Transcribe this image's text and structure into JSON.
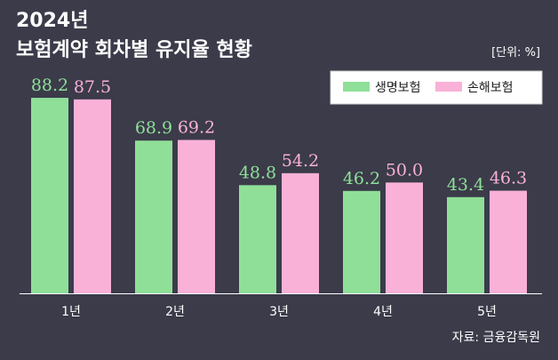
{
  "header": {
    "year_title": "2024년",
    "main_title": "보험계약 회차별 유지율 현황",
    "unit": "[단위: %]"
  },
  "source": "자료: 금융감독원",
  "colors": {
    "background": "#3b3b4a",
    "life": "#8fdf98",
    "nonlife": "#f9b1d8",
    "text_light": "#ffffff",
    "text_dark": "#1e1e1e"
  },
  "chart_data": {
    "type": "bar",
    "categories": [
      "1년",
      "2년",
      "3년",
      "4년",
      "5년"
    ],
    "series": [
      {
        "name": "생명보험",
        "values": [
          88.2,
          68.9,
          48.8,
          46.2,
          43.4
        ]
      },
      {
        "name": "손해보험",
        "values": [
          87.5,
          69.2,
          54.2,
          50.0,
          46.3
        ]
      }
    ],
    "value_labels": [
      [
        "88.2",
        "68.9",
        "48.8",
        "46.2",
        "43.4"
      ],
      [
        "87.5",
        "69.2",
        "54.2",
        "50.0",
        "46.3"
      ]
    ],
    "ylim": [
      0,
      100
    ],
    "grid": false,
    "legend_position": "top-right"
  }
}
